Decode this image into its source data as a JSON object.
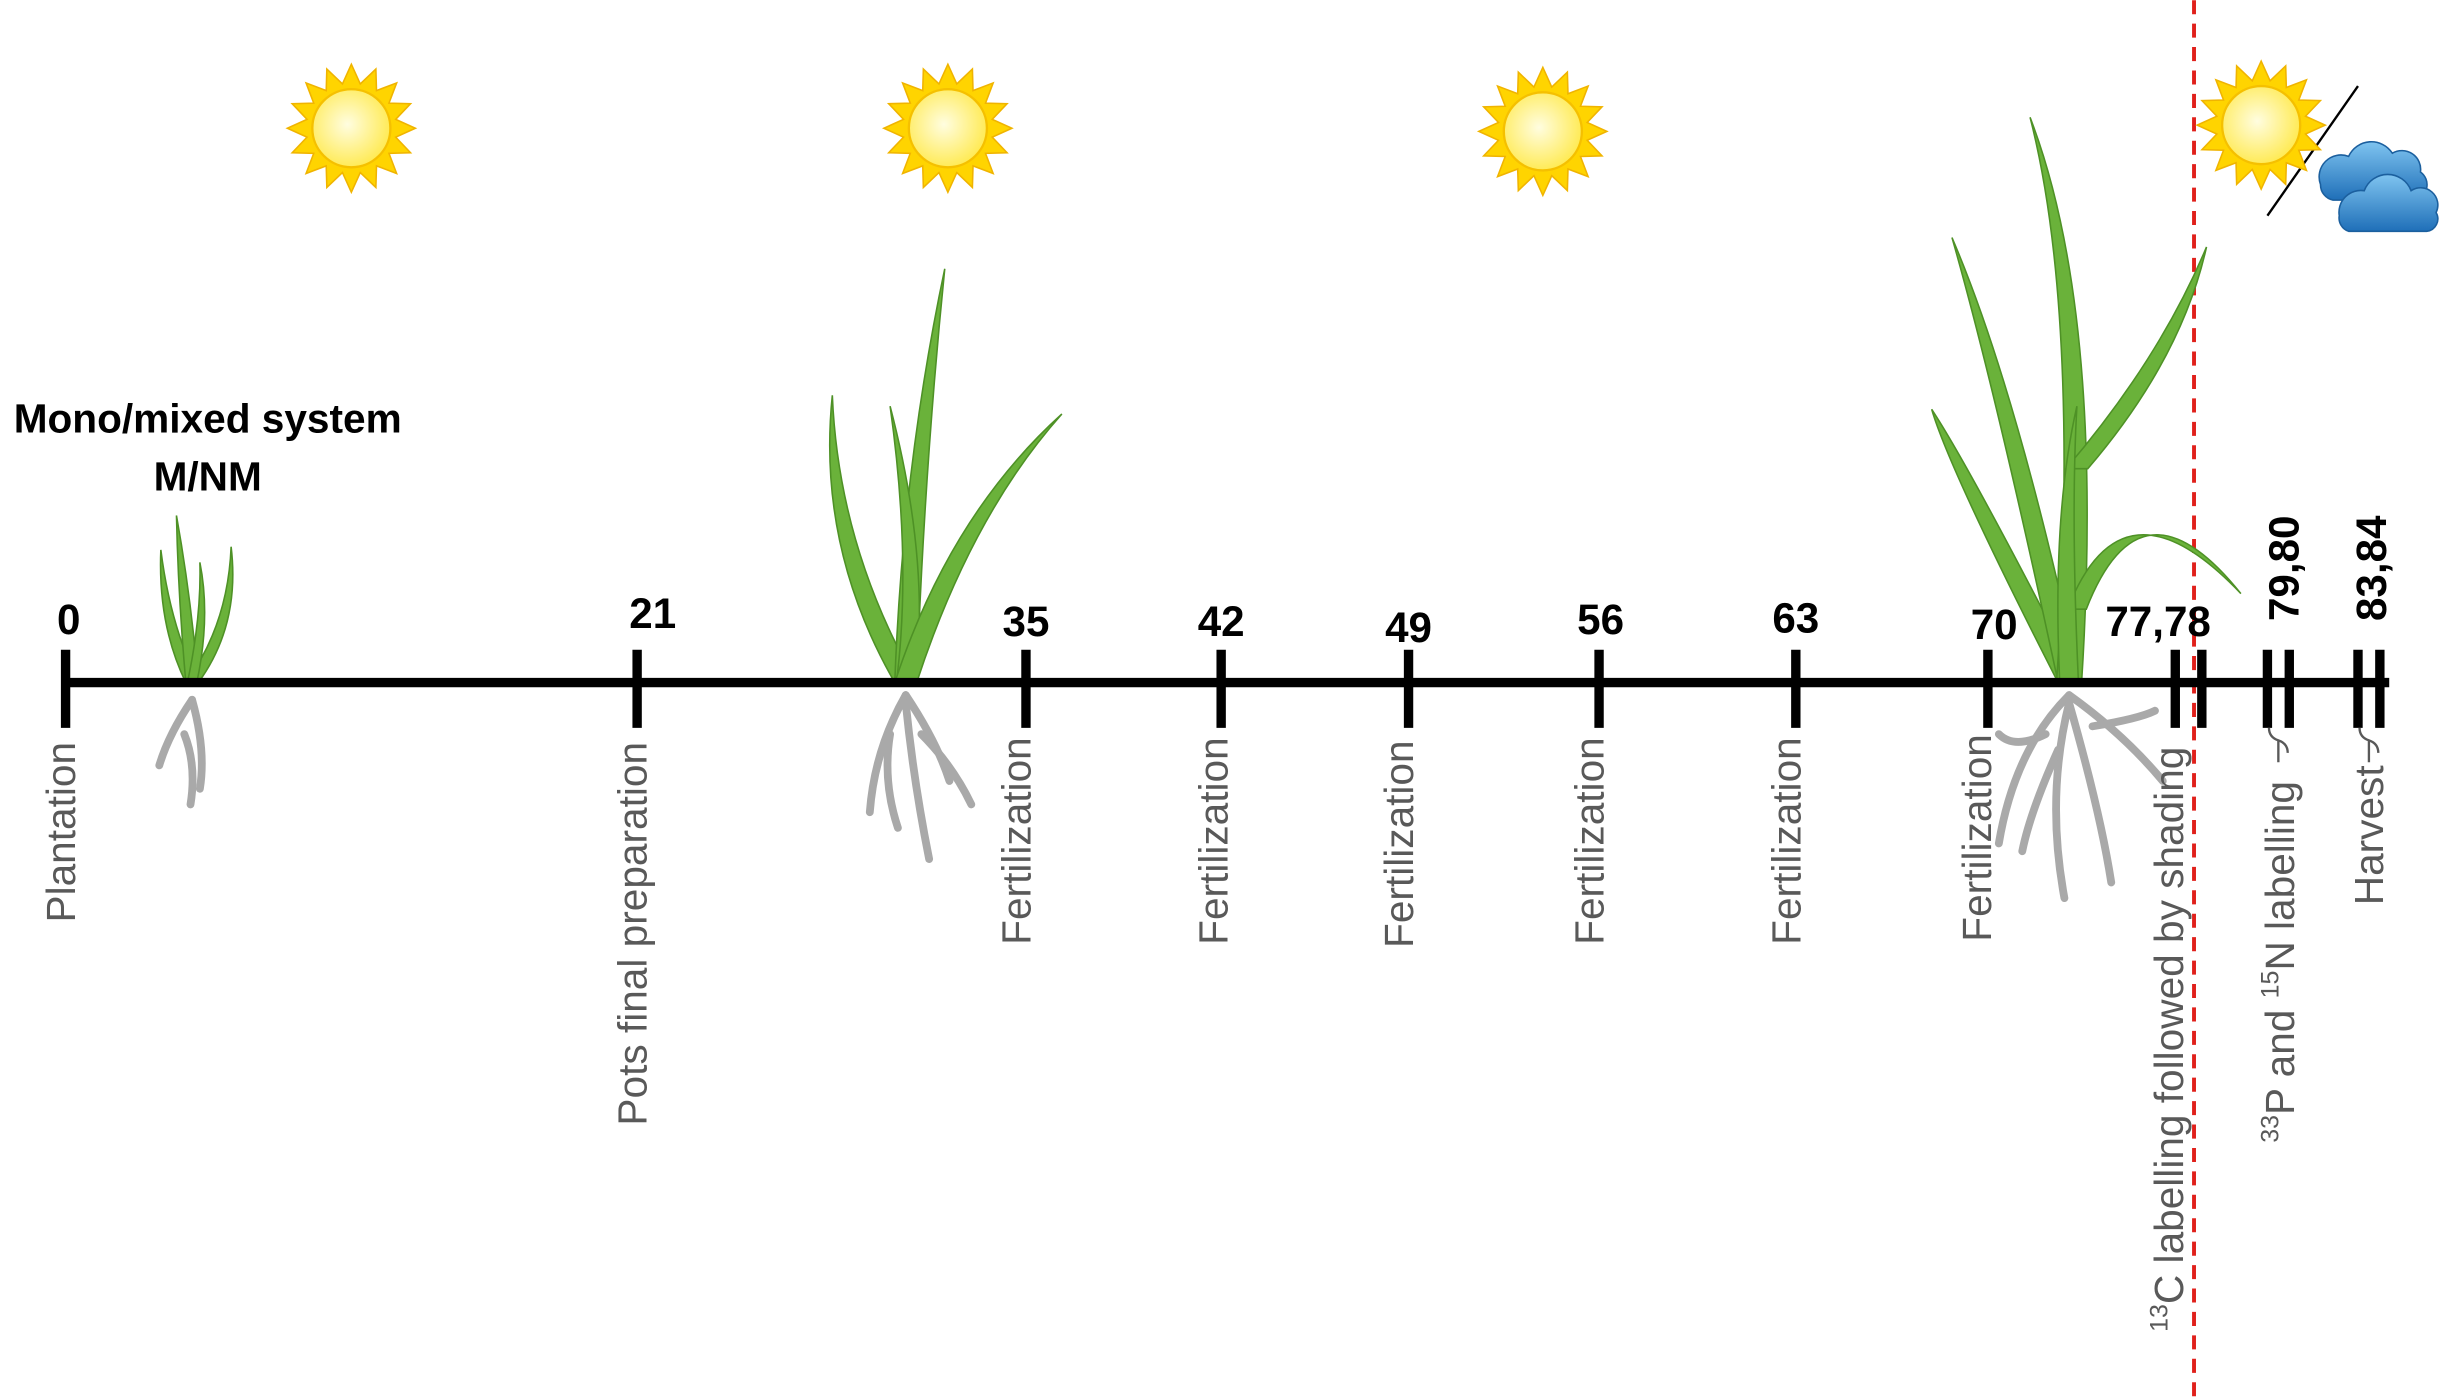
{
  "title": [
    "Mono/mixed system",
    "M/NM"
  ],
  "timeline": [
    {
      "day": "0",
      "event": [
        {
          "text": "Plantation"
        }
      ]
    },
    {
      "day": "21",
      "event": [
        {
          "text": "Pots final preparation"
        }
      ]
    },
    {
      "day": "35",
      "event": [
        {
          "text": "Fertilization"
        }
      ]
    },
    {
      "day": "42",
      "event": [
        {
          "text": "Fertilization"
        }
      ]
    },
    {
      "day": "49",
      "event": [
        {
          "text": "Fertilization"
        }
      ]
    },
    {
      "day": "56",
      "event": [
        {
          "text": "Fertilization"
        }
      ]
    },
    {
      "day": "63",
      "event": [
        {
          "text": "Fertilization"
        }
      ]
    },
    {
      "day": "70",
      "event": [
        {
          "text": "Fertilization"
        }
      ]
    },
    {
      "day": "77,78",
      "event": [
        {
          "text": "13",
          "sup": true
        },
        {
          "text": "C labelling followed by shading"
        }
      ]
    },
    {
      "day": "79,80",
      "event": [
        {
          "text": "33",
          "sup": true
        },
        {
          "text": "P and "
        },
        {
          "text": "15",
          "sup": true
        },
        {
          "text": "N labelling"
        }
      ]
    },
    {
      "day": "83,84",
      "event": [
        {
          "text": "Harvest"
        }
      ],
      "color": "#e0201b"
    }
  ]
}
